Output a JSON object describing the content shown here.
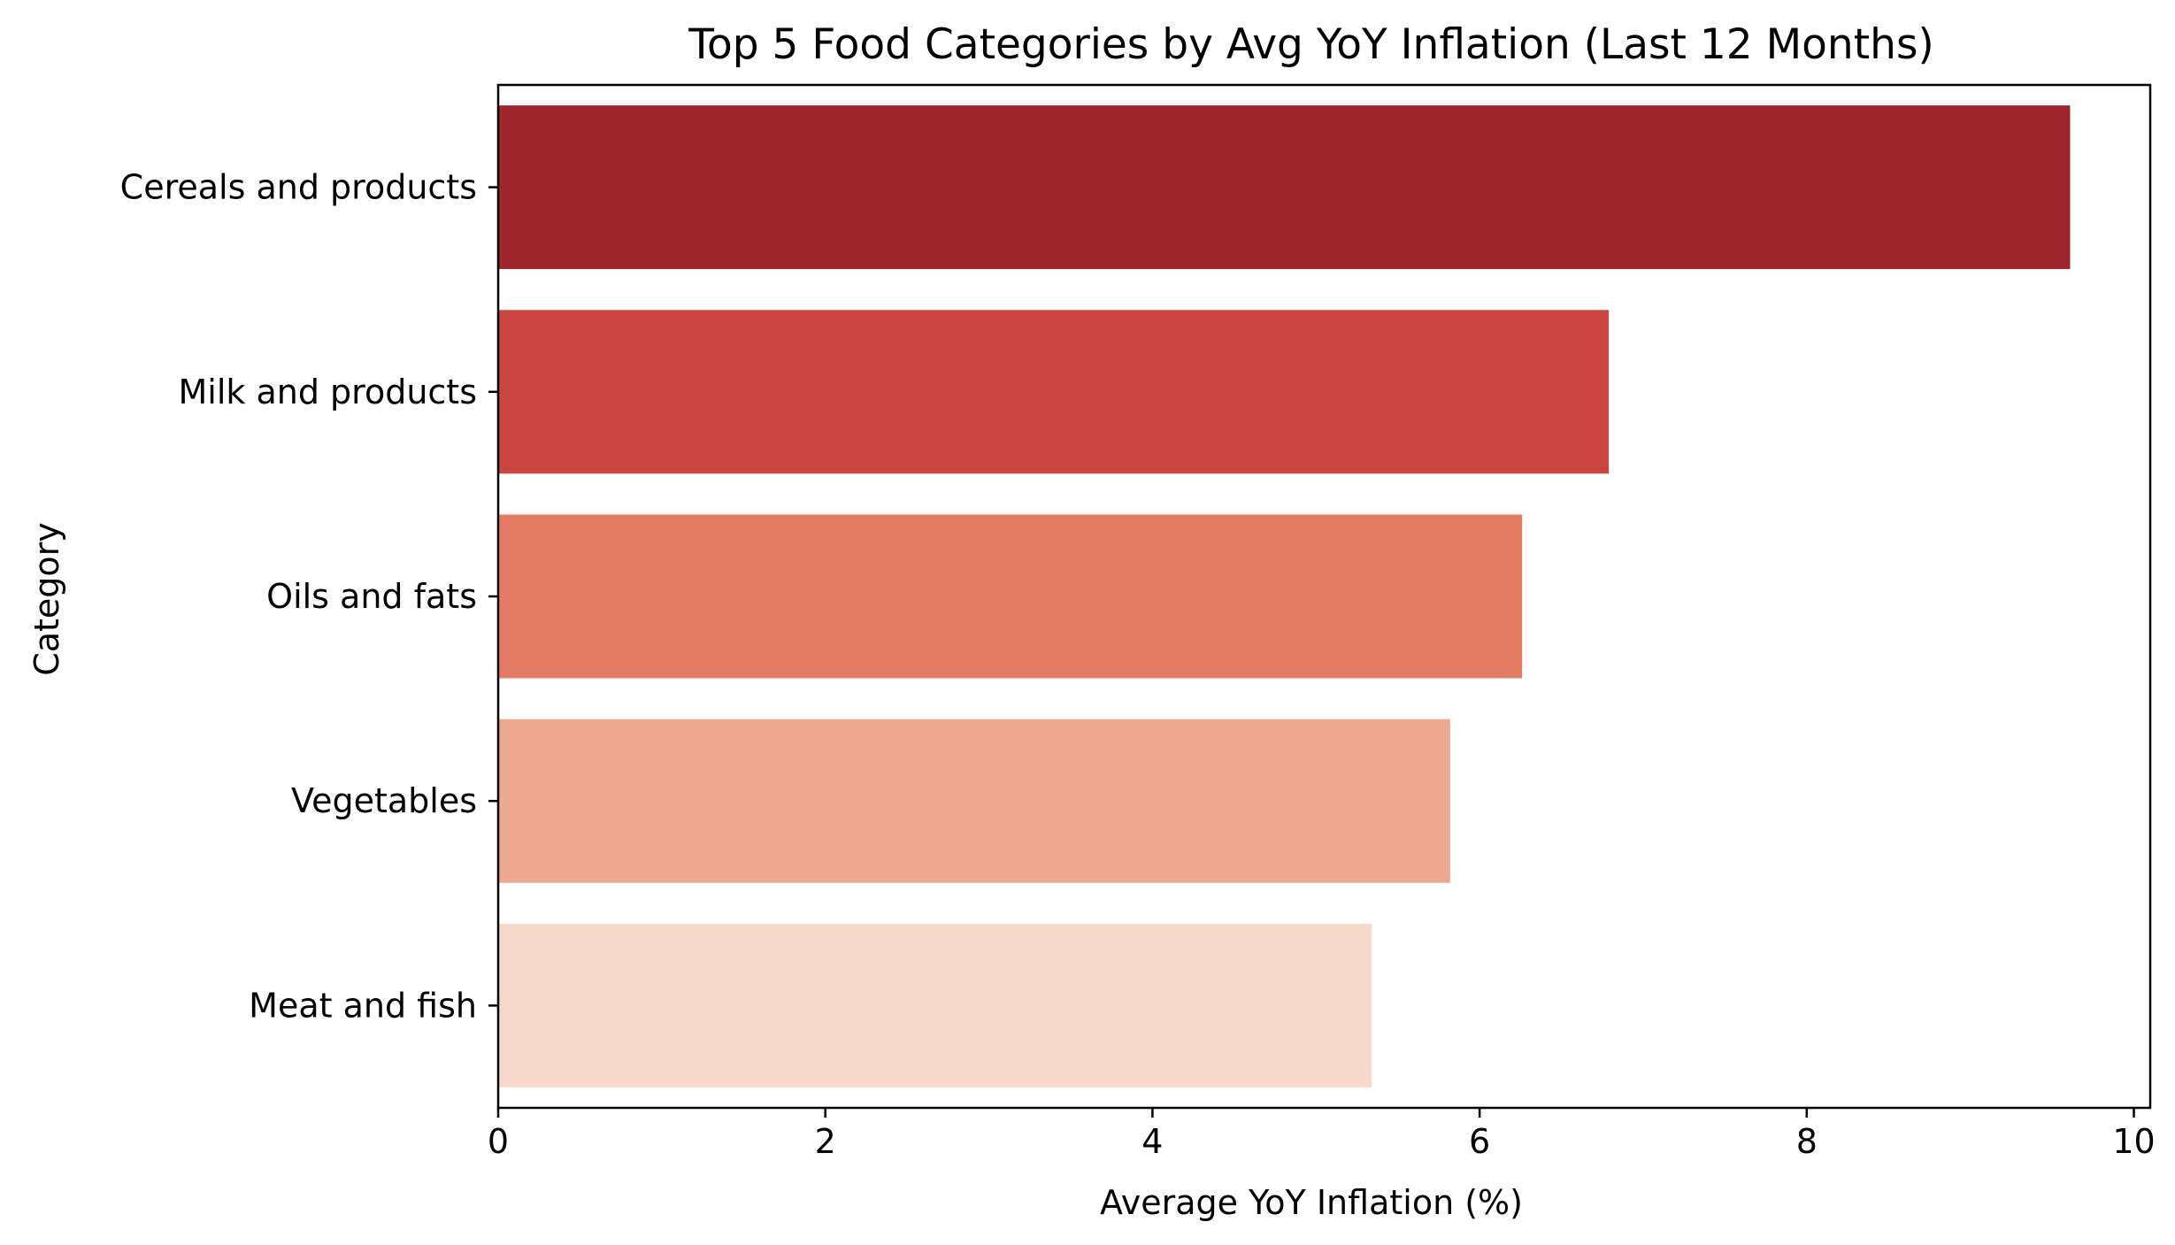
{
  "chart_data": {
    "type": "bar",
    "orientation": "horizontal",
    "title": "Top 5 Food Categories by Avg YoY Inflation (Last 12 Months)",
    "xlabel": "Average YoY Inflation (%)",
    "ylabel": "Category",
    "categories": [
      "Cereals and products",
      "Milk and products",
      "Oils and fats",
      "Vegetables",
      "Meat and fish"
    ],
    "values": [
      9.61,
      6.79,
      6.26,
      5.82,
      5.34
    ],
    "colors": [
      "#9c242a",
      "#ca4640",
      "#e67b65",
      "#eca891",
      "#f6d9cb"
    ],
    "xlim": [
      0,
      10.1
    ],
    "xticks": [
      "0",
      "2",
      "4",
      "6",
      "8",
      "10"
    ],
    "xtick_values": [
      0,
      2,
      4,
      6,
      8,
      10
    ],
    "grid": false,
    "legend": "none"
  }
}
